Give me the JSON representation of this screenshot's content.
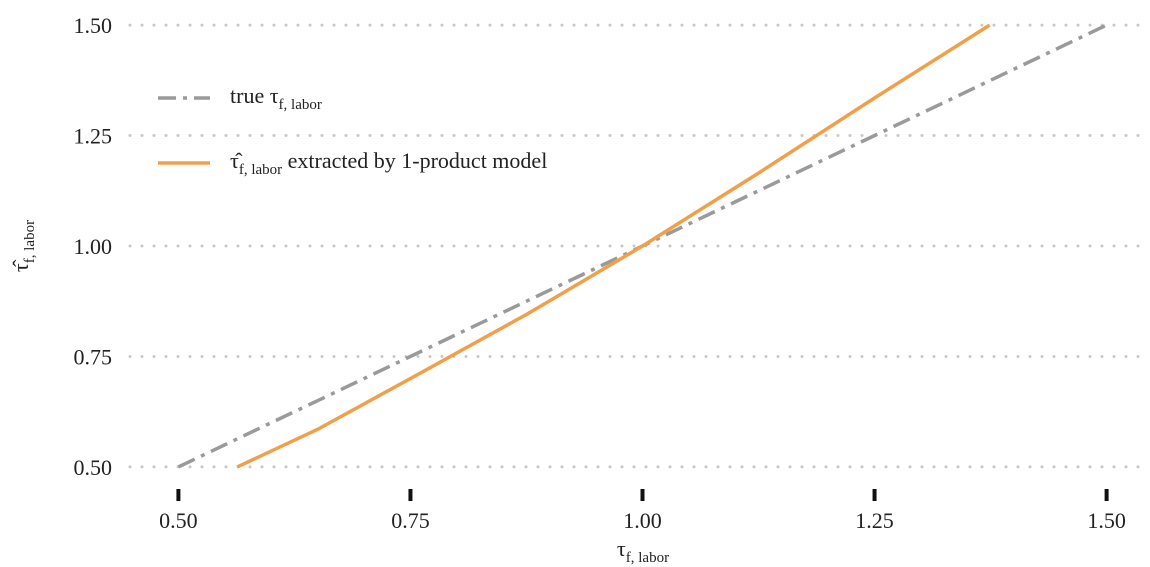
{
  "chart_data": {
    "type": "line",
    "xlabel": "τ",
    "xlabel_subscript": "f, labor",
    "ylabel": "τ̂",
    "ylabel_subscript": "f, labor",
    "xlim": [
      0.45,
      1.55
    ],
    "ylim": [
      0.45,
      1.55
    ],
    "xticks": [
      {
        "value": 0.5,
        "label": "0.50"
      },
      {
        "value": 0.75,
        "label": "0.75"
      },
      {
        "value": 1,
        "label": "1.00"
      },
      {
        "value": 1.25,
        "label": "1.25"
      },
      {
        "value": 1.5,
        "label": "1.50"
      }
    ],
    "yticks": [
      {
        "value": 0.5,
        "label": "0.50"
      },
      {
        "value": 0.75,
        "label": "0.75"
      },
      {
        "value": 1,
        "label": "1.00"
      },
      {
        "value": 1.25,
        "label": "1.25"
      },
      {
        "value": 1.5,
        "label": "1.50"
      }
    ],
    "grid": true,
    "legend": "upper left",
    "series": [
      {
        "name": "true τ",
        "name_subscript": "f, labor",
        "color": "#9a9a9a",
        "style": "dashdot",
        "x": [
          0.5,
          1.5
        ],
        "values": [
          0.5,
          1.5
        ]
      },
      {
        "name": "τ̂",
        "name_subscript": "f, labor",
        "name_suffix": " extracted by 1-product model",
        "color": "#f0a04b",
        "style": "solid",
        "x": [
          0.5635,
          0.65,
          0.75,
          0.875,
          1.0,
          1.125,
          1.25,
          1.374
        ],
        "values": [
          0.5,
          0.585,
          0.7,
          0.845,
          1.0,
          1.165,
          1.335,
          1.5
        ]
      }
    ]
  }
}
